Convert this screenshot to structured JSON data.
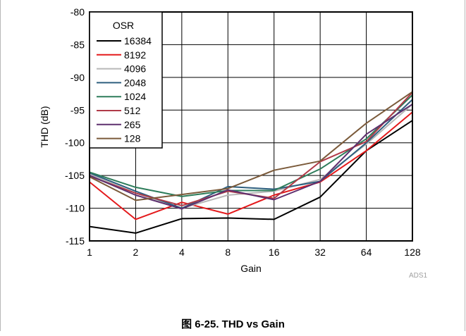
{
  "chart_data": {
    "type": "line",
    "title": "",
    "xlabel": "Gain",
    "ylabel": "THD (dB)",
    "x_scale": "log2",
    "categories": [
      "1",
      "2",
      "4",
      "8",
      "16",
      "32",
      "64",
      "128"
    ],
    "ylim": [
      -115,
      -80
    ],
    "yticks": [
      "-80",
      "-85",
      "-90",
      "-95",
      "-100",
      "-105",
      "-110",
      "-115"
    ],
    "grid": true,
    "legend": {
      "title": "OSR",
      "position": "top-left"
    },
    "series": [
      {
        "name": "16384",
        "color": "#000000",
        "values": [
          -112.8,
          -113.8,
          -111.6,
          -111.5,
          -111.7,
          -108.3,
          -101.2,
          -96.6
        ]
      },
      {
        "name": "8192",
        "color": "#e41a1c",
        "values": [
          -106.0,
          -111.7,
          -109.1,
          -110.9,
          -108.0,
          -106.0,
          -101.2,
          -95.3
        ]
      },
      {
        "name": "4096",
        "color": "#b8b8b8",
        "values": [
          -104.8,
          -107.7,
          -110.0,
          -108.0,
          -107.4,
          -105.6,
          -100.2,
          -94.1
        ]
      },
      {
        "name": "2048",
        "color": "#2e5f7f",
        "values": [
          -104.6,
          -107.4,
          -110.0,
          -106.7,
          -107.1,
          -105.9,
          -100.0,
          -93.4
        ]
      },
      {
        "name": "1024",
        "color": "#2e7d5b",
        "values": [
          -104.5,
          -106.8,
          -108.2,
          -107.3,
          -107.3,
          -104.0,
          -99.4,
          -92.7
        ]
      },
      {
        "name": "512",
        "color": "#b03a48",
        "values": [
          -105.1,
          -107.7,
          -109.6,
          -107.4,
          -108.5,
          -102.9,
          -99.8,
          -92.3
        ]
      },
      {
        "name": "265",
        "color": "#5e2f6e",
        "values": [
          -105.0,
          -108.0,
          -110.1,
          -107.2,
          -108.7,
          -105.9,
          -98.7,
          -94.1
        ]
      },
      {
        "name": "128",
        "color": "#7b5a3a",
        "values": [
          -105.2,
          -108.8,
          -107.9,
          -107.0,
          -104.2,
          -102.8,
          -97.0,
          -92.2
        ]
      }
    ]
  },
  "watermark": "ADS1",
  "caption": "图 6-25. THD vs Gain"
}
